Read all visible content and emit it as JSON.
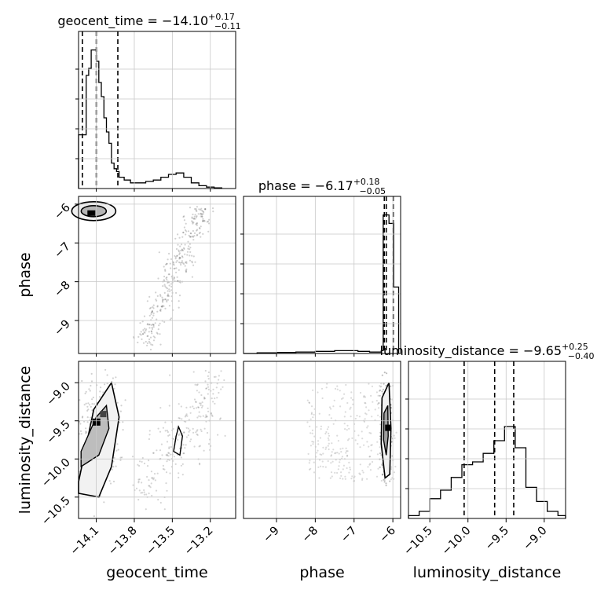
{
  "chart_data": {
    "type": "corner",
    "parameters": [
      "geocent_time",
      "phase",
      "luminosity_distance"
    ],
    "titles": [
      {
        "name": "geocent_time",
        "median": "−14.10",
        "plus": "+0.17",
        "minus": "−0.11"
      },
      {
        "name": "phase",
        "median": "−6.17",
        "plus": "+0.18",
        "minus": "−0.05"
      },
      {
        "name": "luminosity_distance",
        "median": "−9.65",
        "plus": "+0.25",
        "minus": "−0.40"
      }
    ],
    "ranges": {
      "geocent_time": [
        -14.24,
        -13.0
      ],
      "phase": [
        -9.85,
        -5.8
      ],
      "luminosity_distance": [
        -10.78,
        -8.72
      ]
    },
    "ticks": {
      "geocent_time": [
        {
          "v": -14.1,
          "label": "−14.1"
        },
        {
          "v": -13.8,
          "label": "−13.8"
        },
        {
          "v": -13.5,
          "label": "−13.5"
        },
        {
          "v": -13.2,
          "label": "−13.2"
        }
      ],
      "phase": [
        {
          "v": -9,
          "label": "−9"
        },
        {
          "v": -8,
          "label": "−8"
        },
        {
          "v": -7,
          "label": "−7"
        },
        {
          "v": -6,
          "label": "−6"
        }
      ],
      "luminosity_distance": [
        {
          "v": -10.5,
          "label": "−10.5"
        },
        {
          "v": -10.0,
          "label": "−10.0"
        },
        {
          "v": -9.5,
          "label": "−9.5"
        },
        {
          "v": -9.0,
          "label": "−9.0"
        }
      ]
    },
    "histograms": {
      "geocent_time": {
        "quantiles": [
          -14.21,
          -14.1,
          -13.93
        ],
        "bins": [
          -14.24,
          -14.18,
          -14.16,
          -14.14,
          -14.12,
          -14.1,
          -14.08,
          -14.06,
          -14.04,
          -14.02,
          -14.0,
          -13.98,
          -13.96,
          -13.94,
          -13.92,
          -13.88,
          -13.83,
          -13.77,
          -13.71,
          -13.65,
          -13.59,
          -13.53,
          -13.47,
          -13.41,
          -13.35,
          -13.29,
          -13.23,
          -13.17,
          -13.11
        ],
        "counts": [
          0.38,
          0.8,
          0.85,
          0.98,
          0.98,
          0.9,
          0.75,
          0.65,
          0.5,
          0.4,
          0.32,
          0.18,
          0.14,
          0.12,
          0.08,
          0.06,
          0.04,
          0.04,
          0.05,
          0.06,
          0.08,
          0.1,
          0.11,
          0.08,
          0.04,
          0.02,
          0.01,
          0.005
        ]
      },
      "phase": {
        "quantiles": [
          -6.22,
          -6.17,
          -5.99
        ],
        "bins": [
          -9.85,
          -9.5,
          -9.0,
          -8.5,
          -8.0,
          -7.5,
          -7.2,
          -6.9,
          -6.6,
          -6.3,
          -6.25,
          -6.1,
          -5.98,
          -5.85
        ],
        "counts": [
          0.0,
          0.005,
          0.008,
          0.01,
          0.015,
          0.02,
          0.02,
          0.015,
          0.01,
          0.02,
          0.98,
          0.92,
          0.47
        ]
      },
      "luminosity_distance": {
        "quantiles": [
          -10.05,
          -9.65,
          -9.4
        ],
        "bins": [
          -10.78,
          -10.64,
          -10.5,
          -10.36,
          -10.22,
          -10.08,
          -9.94,
          -9.8,
          -9.66,
          -9.52,
          -9.38,
          -9.24,
          -9.1,
          -8.96,
          -8.82,
          -8.72
        ],
        "counts": [
          0.02,
          0.05,
          0.14,
          0.2,
          0.29,
          0.38,
          0.4,
          0.46,
          0.55,
          0.65,
          0.5,
          0.22,
          0.12,
          0.05,
          0.02
        ]
      }
    },
    "scatter_2d": [
      {
        "x": "geocent_time",
        "y": "phase",
        "description": "dense blob near (-14.10, -6.2) plus a curved arm from (-13.7, -9.5) to (-13.3, -6.0)"
      },
      {
        "x": "geocent_time",
        "y": "luminosity_distance",
        "description": "cluster at (-14.1, -9.6) spread in distance; second cluster near (-13.4, -9.8)"
      },
      {
        "x": "phase",
        "y": "luminosity_distance",
        "description": "dense vertical band at phase -6.2 across distance -10.2 to -9.1 plus diffuse scatter"
      }
    ],
    "grid": true
  }
}
